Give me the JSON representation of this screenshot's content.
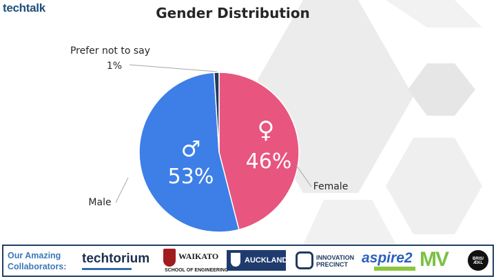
{
  "header": {
    "logo_text": "techtalk",
    "title": "Gender Distribution"
  },
  "colors": {
    "male": "#3d7fe6",
    "female": "#e8557f",
    "prefer_not": "#1f3a60",
    "hex_bg": "#e9e9e9"
  },
  "chart_data": {
    "type": "pie",
    "title": "Gender Distribution",
    "slices": [
      {
        "name": "Male",
        "value": 53,
        "label": "53%",
        "symbol": "♂",
        "color": "#3d7fe6"
      },
      {
        "name": "Female",
        "value": 46,
        "label": "46%",
        "symbol": "♀",
        "color": "#e8557f"
      },
      {
        "name": "Prefer not to say",
        "value": 1,
        "label": "1%",
        "color": "#1f3a60"
      }
    ]
  },
  "footer": {
    "label": "Our Amazing Collaborators:",
    "sponsors": [
      {
        "name": "Techtorium",
        "text": "techtorium",
        "icon": "techtorium-logo"
      },
      {
        "name": "The University of Waikato",
        "text": "WAIKATO",
        "subtext": "SCHOOL OF ENGINEERING",
        "icon": "waikato-crest"
      },
      {
        "name": "The University of Auckland",
        "text": "AUCKLAND",
        "icon": "auckland-crest"
      },
      {
        "name": "Newmarket Innovation Precinct",
        "text": "INNOVATION PRECINCT",
        "icon": "newmarket-logo"
      },
      {
        "name": "aspire2 international",
        "text": "aspire2",
        "icon": "aspire2-logo"
      },
      {
        "name": "MV New Zealand",
        "text": "MV",
        "icon": "mv-logo"
      },
      {
        "name": "Brisk",
        "text": "BRIS/ÆKL",
        "icon": "brisk-logo"
      }
    ]
  }
}
